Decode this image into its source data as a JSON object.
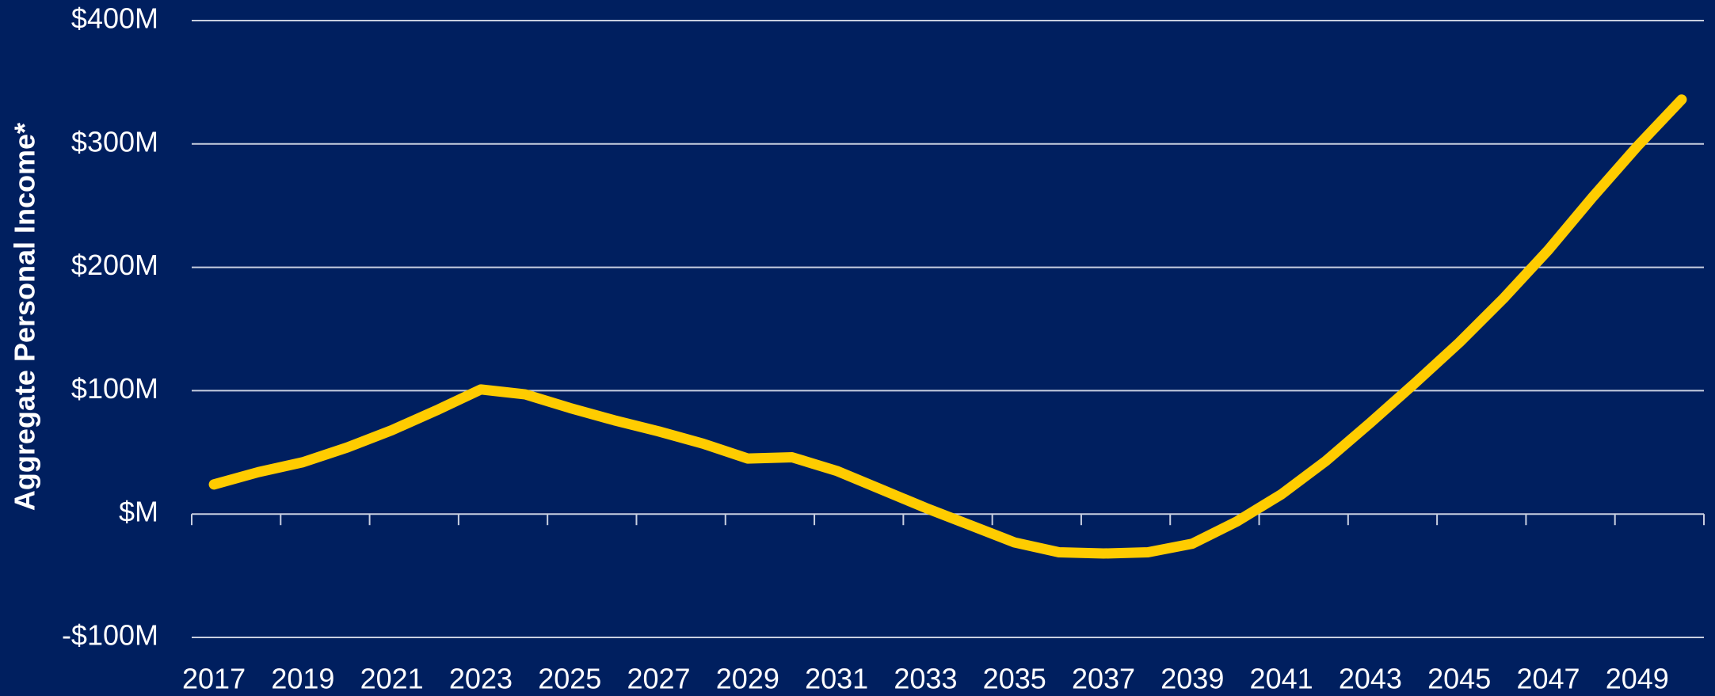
{
  "chart_data": {
    "type": "line",
    "y_label": "Aggregate Personal Income*",
    "x": [
      2017,
      2018,
      2019,
      2020,
      2021,
      2022,
      2023,
      2024,
      2025,
      2026,
      2027,
      2028,
      2029,
      2030,
      2031,
      2032,
      2033,
      2034,
      2035,
      2036,
      2037,
      2038,
      2039,
      2040,
      2041,
      2042,
      2043,
      2044,
      2045,
      2046,
      2047,
      2048,
      2049,
      2050
    ],
    "series": [
      {
        "color": "#ffcc00",
        "values": [
          24,
          34,
          42,
          54,
          68,
          84,
          101,
          97,
          86,
          76,
          67,
          57,
          45,
          46,
          35,
          20,
          5,
          -9,
          -23,
          -31,
          -32,
          -31,
          -24,
          -6,
          16,
          43,
          74,
          106,
          139,
          175,
          214,
          257,
          298,
          336
        ]
      }
    ],
    "xlim": [
      2016.5,
      2050.5
    ],
    "xticks": [
      2017,
      2019,
      2021,
      2023,
      2025,
      2027,
      2029,
      2031,
      2033,
      2035,
      2037,
      2039,
      2041,
      2043,
      2045,
      2047,
      2049
    ],
    "ylim": [
      -100,
      400
    ],
    "yticks": [
      {
        "value": -100,
        "label": "-$100M"
      },
      {
        "value": 0,
        "label": "$M"
      },
      {
        "value": 100,
        "label": "$100M"
      },
      {
        "value": 200,
        "label": "$200M"
      },
      {
        "value": 300,
        "label": "$300M"
      },
      {
        "value": 400,
        "label": "$400M"
      }
    ],
    "grid": true
  }
}
